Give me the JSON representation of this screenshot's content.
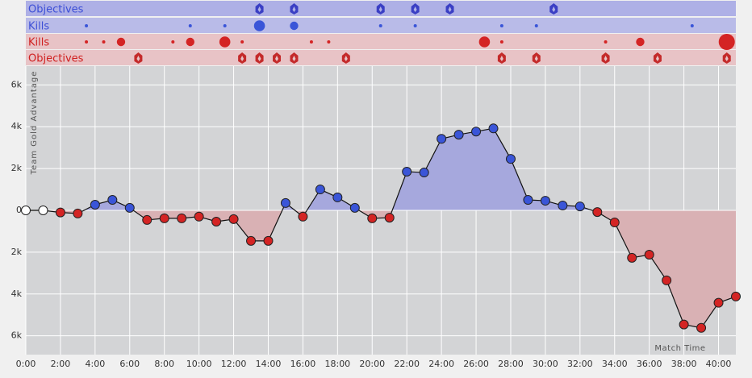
{
  "chart_data": {
    "type": "line",
    "y_label": "Team Gold Advantage",
    "x_label": "Match Time",
    "x": [
      0,
      1,
      2,
      3,
      4,
      5,
      6,
      7,
      8,
      9,
      10,
      11,
      12,
      13,
      14,
      15,
      16,
      17,
      18,
      19,
      20,
      21,
      22,
      23,
      24,
      25,
      26,
      27,
      28,
      29,
      30,
      31,
      32,
      33,
      34,
      35,
      36,
      37,
      38,
      39,
      40,
      41
    ],
    "values": [
      0,
      0,
      -100,
      -150,
      270,
      500,
      120,
      -460,
      -380,
      -380,
      -300,
      -540,
      -420,
      -1460,
      -1460,
      350,
      -300,
      1000,
      620,
      120,
      -380,
      -350,
      1850,
      1810,
      3420,
      3620,
      3770,
      3920,
      2460,
      500,
      460,
      230,
      190,
      -80,
      -580,
      -2270,
      -2120,
      -3350,
      -5460,
      -5620,
      -4420,
      -4120
    ],
    "positive_color": "#3a55d8",
    "negative_color": "#d42424",
    "zero_color": "#ffffff",
    "positive_fill": "#a6a8dd",
    "negative_fill": "#d9b1b4",
    "xlim": [
      0,
      41
    ],
    "ylim": [
      -6900,
      6900
    ],
    "xticks": [
      {
        "value": 0,
        "label": "0:00"
      },
      {
        "value": 2,
        "label": "2:00"
      },
      {
        "value": 4,
        "label": "4:00"
      },
      {
        "value": 6,
        "label": "6:00"
      },
      {
        "value": 8,
        "label": "8:00"
      },
      {
        "value": 10,
        "label": "10:00"
      },
      {
        "value": 12,
        "label": "12:00"
      },
      {
        "value": 14,
        "label": "14:00"
      },
      {
        "value": 16,
        "label": "16:00"
      },
      {
        "value": 18,
        "label": "18:00"
      },
      {
        "value": 20,
        "label": "20:00"
      },
      {
        "value": 22,
        "label": "22:00"
      },
      {
        "value": 24,
        "label": "24:00"
      },
      {
        "value": 26,
        "label": "26:00"
      },
      {
        "value": 28,
        "label": "28:00"
      },
      {
        "value": 30,
        "label": "30:00"
      },
      {
        "value": 32,
        "label": "32:00"
      },
      {
        "value": 34,
        "label": "34:00"
      },
      {
        "value": 36,
        "label": "36:00"
      },
      {
        "value": 38,
        "label": "38:00"
      },
      {
        "value": 40,
        "label": "40:00"
      }
    ],
    "yticks": [
      {
        "value": 6000,
        "label": "6k"
      },
      {
        "value": 4000,
        "label": "4k"
      },
      {
        "value": 2000,
        "label": "2k"
      },
      0,
      {
        "value": -2000,
        "label": "2k"
      },
      {
        "value": -4000,
        "label": "4k"
      },
      {
        "value": -6000,
        "label": "6k"
      }
    ],
    "grid": true,
    "event_rows": [
      {
        "label": "Objectives",
        "kind": "objective",
        "color": "#3a3fc4",
        "text_color": "#3d4fd6",
        "background": "#aeb0e6",
        "times": [
          13.5,
          15.5,
          20.5,
          22.5,
          24.5,
          30.5
        ]
      },
      {
        "label": "Kills",
        "kind": "kill",
        "color": "#3a55d8",
        "text_color": "#3d4fd6",
        "background": "#b9bbe8",
        "times": [
          3.5,
          9.5,
          11.5,
          13.5,
          15.5,
          20.5,
          22.5,
          27.5,
          29.5,
          38.5
        ],
        "sizes": [
          1,
          1,
          1,
          3,
          2,
          1,
          1,
          1,
          1,
          1
        ]
      },
      {
        "label": "Kills",
        "kind": "kill",
        "color": "#d42424",
        "text_color": "#d02020",
        "background": "#e8c3c6",
        "times": [
          3.5,
          4.5,
          5.5,
          8.5,
          9.5,
          11.5,
          12.5,
          16.5,
          17.5,
          26.5,
          27.5,
          33.5,
          35.5,
          40.5
        ],
        "sizes": [
          1,
          1,
          2,
          1,
          2,
          3,
          1,
          1,
          1,
          3,
          1,
          1,
          2,
          5
        ]
      },
      {
        "label": "Objectives",
        "kind": "objective",
        "color": "#c42a2a",
        "text_color": "#d02020",
        "background": "#e8c3c6",
        "times": [
          6.5,
          12.5,
          13.5,
          14.5,
          15.5,
          18.5,
          27.5,
          29.5,
          33.5,
          36.5,
          40.5
        ]
      }
    ]
  }
}
